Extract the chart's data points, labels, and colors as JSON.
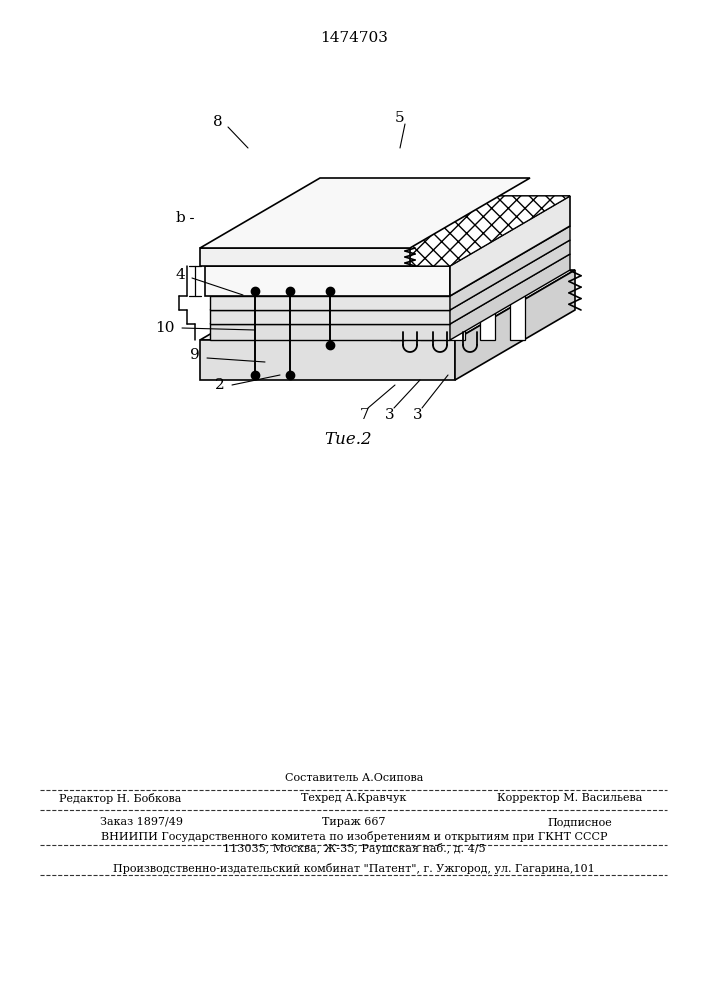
{
  "patent_number": "1474703",
  "figure_caption": "Τие.2",
  "footer_line0_center": "Составитель А.Осипова",
  "footer_line1_left": "Редактор Н. Бобкова",
  "footer_line1_center": "Техред А.Кравчук",
  "footer_line1_right": "Корректор М. Васильева",
  "footer_line2_left": "Заказ 1897/49",
  "footer_line2_center": "Тираж 667",
  "footer_line2_right": "Подписное",
  "footer_line3": "ВНИИПИ Государственного комитета по изобретениям и открытиям при ГКНТ СССР",
  "footer_line4": "113035, Москва, Ж-35, Раушская наб., д. 4/5",
  "footer_line5": "Производственно-издательский комбинат \"Патент\", г. Ужгород, ул. Гагарина,101",
  "bg_color": "#ffffff",
  "line_color": "#000000"
}
